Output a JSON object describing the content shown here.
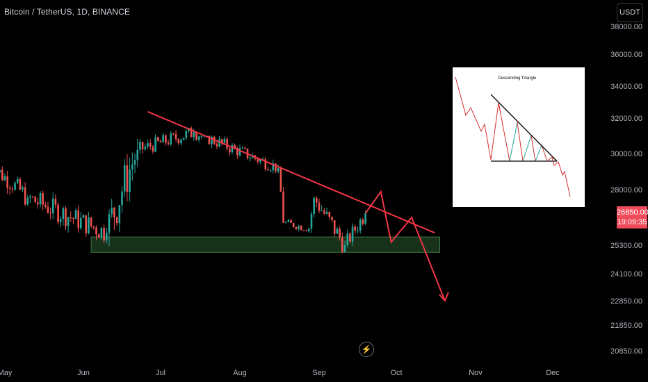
{
  "header": {
    "symbol_title": "Bitcoin / TetherUS, 1D, BINANCE"
  },
  "toolbar": {
    "currency": "USDT"
  },
  "price_scale": {
    "ticks": [
      "38000.00",
      "36000.00",
      "34000.00",
      "32000.00",
      "30000.00",
      "28000.00",
      "25300.00",
      "24100.00",
      "22850.00",
      "21850.00",
      "20850.00"
    ],
    "last_price": "26850.00",
    "countdown": "19:09:35"
  },
  "time_scale": {
    "ticks": [
      "May",
      "Jun",
      "Jul",
      "Aug",
      "Sep",
      "Oct",
      "Nov",
      "Dec"
    ]
  },
  "inset": {
    "title": "Descending Triangle"
  },
  "colors": {
    "up": "#26a69a",
    "down": "#ef5350",
    "trendline": "#f23645",
    "zone_fill": "#1b3a1e",
    "zone_border": "#3f7a45",
    "label_bg": "#ef4b5a"
  },
  "icons": {
    "replay": "lightning-icon"
  },
  "chart_data": {
    "type": "candlestick",
    "title": "Bitcoin / TetherUS, 1D, BINANCE",
    "y_scale": "log-like (non-linear tick spacing)",
    "xlabel": "",
    "ylabel": "",
    "grid": false,
    "x_ticks": [
      "May",
      "Jun",
      "Jul",
      "Aug",
      "Sep",
      "Oct",
      "Nov",
      "Dec"
    ],
    "y_ticks": [
      38000,
      36000,
      34000,
      32000,
      30000,
      28000,
      25300,
      24100,
      22850,
      21850,
      20850
    ],
    "last_price": 26850,
    "segments": [
      {
        "from": "2023-04-25",
        "to": "2023-05-10",
        "start": 29400,
        "end": 27600,
        "range": [
          27200,
          30100
        ]
      },
      {
        "from": "2023-05-10",
        "to": "2023-06-10",
        "start": 27600,
        "end": 25900,
        "range": [
          25350,
          28400
        ]
      },
      {
        "from": "2023-06-10",
        "to": "2023-06-22",
        "start": 25900,
        "end": 30200,
        "range": [
          24800,
          31200
        ]
      },
      {
        "from": "2023-06-22",
        "to": "2023-07-14",
        "start": 30200,
        "end": 31200,
        "range": [
          29600,
          31900
        ]
      },
      {
        "from": "2023-07-14",
        "to": "2023-08-16",
        "start": 31200,
        "end": 29200,
        "range": [
          28900,
          31000
        ]
      },
      {
        "from": "2023-08-16",
        "to": "2023-08-18",
        "start": 29200,
        "end": 26400,
        "range": [
          25400,
          29300
        ]
      },
      {
        "from": "2023-08-18",
        "to": "2023-08-28",
        "start": 26400,
        "end": 26100,
        "range": [
          25800,
          26900
        ]
      },
      {
        "from": "2023-08-28",
        "to": "2023-08-30",
        "start": 26100,
        "end": 27600,
        "range": [
          25900,
          28100
        ]
      },
      {
        "from": "2023-08-30",
        "to": "2023-09-11",
        "start": 27600,
        "end": 25300,
        "range": [
          24950,
          27700
        ]
      },
      {
        "from": "2023-09-11",
        "to": "2023-09-19",
        "start": 25300,
        "end": 26850,
        "range": [
          25200,
          27400
        ]
      }
    ],
    "annotations": {
      "resistance_trendline": {
        "from": {
          "date": "2023-06-26",
          "price": 32400
        },
        "to": {
          "date": "2023-10-16",
          "price": 25900
        }
      },
      "support_zone": {
        "from": "2023-06-04",
        "to": "2023-10-18",
        "low": 25000,
        "high": 25700
      },
      "projection_path": [
        {
          "date": "2023-09-19",
          "price": 26850
        },
        {
          "date": "2023-09-25",
          "price": 27900
        },
        {
          "date": "2023-09-29",
          "price": 25450
        },
        {
          "date": "2023-10-07",
          "price": 26650
        },
        {
          "date": "2023-10-20",
          "price": 22850
        }
      ]
    }
  }
}
